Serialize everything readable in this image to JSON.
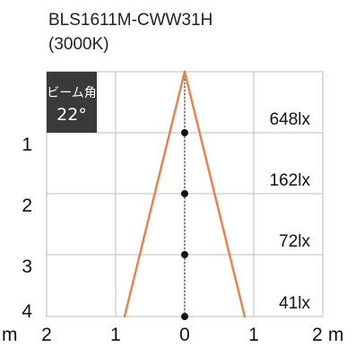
{
  "title_line1": "BLS1611M-CWW31H",
  "title_line2": "(3000K)",
  "beam_angle": {
    "label": "ビーム角",
    "value": "22°"
  },
  "distance_labels": [
    "1",
    "2",
    "3",
    "4"
  ],
  "distance_unit": "m",
  "width_labels": [
    "2",
    "1",
    "0",
    "1",
    "2"
  ],
  "width_unit": "m",
  "lux_values": [
    "648lx",
    "162lx",
    "72lx",
    "41lx"
  ],
  "colors": {
    "beam": "#e8844b",
    "grid": "#bdbdbd",
    "axis": "#111111",
    "badge": "#3a3a3a"
  }
}
